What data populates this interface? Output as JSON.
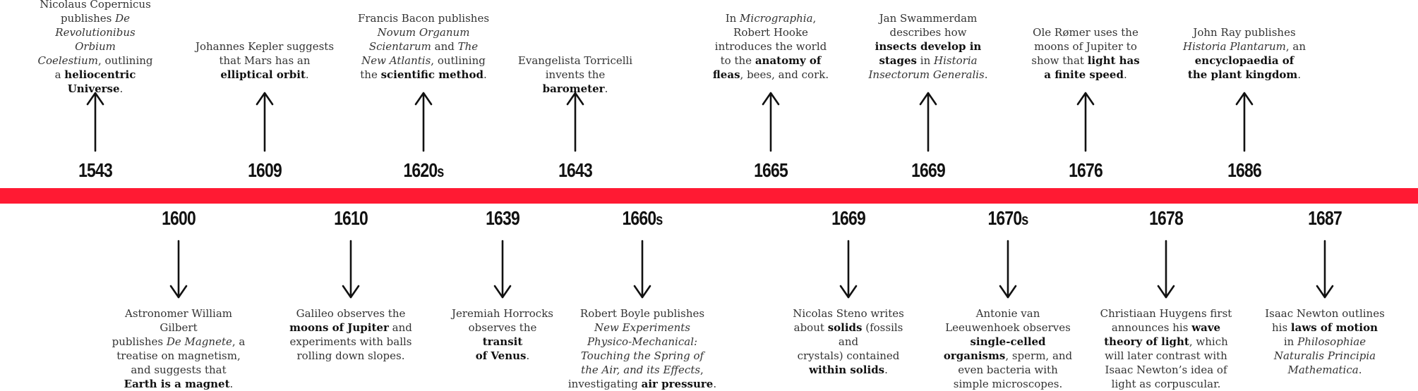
{
  "colors": {
    "band": "#ff1a33",
    "text": "#222222",
    "year": "#111111"
  },
  "events_above": [
    {
      "id": "1543",
      "year": "1543",
      "suffix": "",
      "lines": [
        [
          {
            "t": "Nicolaus Copernicus"
          }
        ],
        [
          {
            "t": "publishes "
          },
          {
            "t": "De",
            "s": "i"
          }
        ],
        [
          {
            "t": "Revolutionibus Orbium",
            "s": "i"
          }
        ],
        [
          {
            "t": "Coelestium",
            "s": "i"
          },
          {
            "t": ", outlining"
          }
        ],
        [
          {
            "t": "a "
          },
          {
            "t": "heliocentric",
            "s": "b"
          }
        ],
        [
          {
            "t": "Universe",
            "s": "b"
          },
          {
            "t": "."
          }
        ]
      ]
    },
    {
      "id": "1609",
      "year": "1609",
      "suffix": "",
      "lines": [
        [
          {
            "t": "Johannes Kepler suggests"
          }
        ],
        [
          {
            "t": "that Mars has an"
          }
        ],
        [
          {
            "t": "elliptical orbit",
            "s": "b"
          },
          {
            "t": "."
          }
        ]
      ]
    },
    {
      "id": "1620s",
      "year": "1620",
      "suffix": "s",
      "lines": [
        [
          {
            "t": "Francis Bacon publishes"
          }
        ],
        [
          {
            "t": "Novum Organum",
            "s": "i"
          }
        ],
        [
          {
            "t": "Scientarum",
            "s": "i"
          },
          {
            "t": " and "
          },
          {
            "t": "The",
            "s": "i"
          }
        ],
        [
          {
            "t": "New Atlantis",
            "s": "i"
          },
          {
            "t": ", outlining"
          }
        ],
        [
          {
            "t": "the "
          },
          {
            "t": "scientific method",
            "s": "b"
          },
          {
            "t": "."
          }
        ]
      ]
    },
    {
      "id": "1643",
      "year": "1643",
      "suffix": "",
      "lines": [
        [
          {
            "t": "Evangelista Torricelli"
          }
        ],
        [
          {
            "t": "invents the "
          },
          {
            "t": "barometer",
            "s": "b"
          },
          {
            "t": "."
          }
        ]
      ]
    },
    {
      "id": "1665",
      "year": "1665",
      "suffix": "",
      "lines": [
        [
          {
            "t": "In "
          },
          {
            "t": "Micrographia",
            "s": "i"
          },
          {
            "t": ","
          }
        ],
        [
          {
            "t": "Robert Hooke"
          }
        ],
        [
          {
            "t": "introduces the world"
          }
        ],
        [
          {
            "t": "to the "
          },
          {
            "t": "anatomy of",
            "s": "b"
          }
        ],
        [
          {
            "t": "fleas",
            "s": "b"
          },
          {
            "t": ", bees, and cork."
          }
        ]
      ]
    },
    {
      "id": "1669a",
      "year": "1669",
      "suffix": "",
      "lines": [
        [
          {
            "t": "Jan Swammerdam"
          }
        ],
        [
          {
            "t": "describes how"
          }
        ],
        [
          {
            "t": "insects develop in",
            "s": "b"
          }
        ],
        [
          {
            "t": "stages",
            "s": "b"
          },
          {
            "t": " in "
          },
          {
            "t": "Historia",
            "s": "i"
          }
        ],
        [
          {
            "t": "Insectorum Generalis",
            "s": "i"
          },
          {
            "t": "."
          }
        ]
      ]
    },
    {
      "id": "1676",
      "year": "1676",
      "suffix": "",
      "lines": [
        [
          {
            "t": "Ole Rømer uses the"
          }
        ],
        [
          {
            "t": "moons of Jupiter to"
          }
        ],
        [
          {
            "t": "show that "
          },
          {
            "t": "light has",
            "s": "b"
          }
        ],
        [
          {
            "t": "a finite speed",
            "s": "b"
          },
          {
            "t": "."
          }
        ]
      ]
    },
    {
      "id": "1686",
      "year": "1686",
      "suffix": "",
      "lines": [
        [
          {
            "t": "John Ray publishes"
          }
        ],
        [
          {
            "t": "Historia Plantarum",
            "s": "i"
          },
          {
            "t": ", an"
          }
        ],
        [
          {
            "t": "encyclopaedia of",
            "s": "b"
          }
        ],
        [
          {
            "t": "the plant kingdom",
            "s": "b"
          },
          {
            "t": "."
          }
        ]
      ]
    }
  ],
  "events_below": [
    {
      "id": "1600",
      "year": "1600",
      "suffix": "",
      "lines": [
        [
          {
            "t": "Astronomer William Gilbert"
          }
        ],
        [
          {
            "t": "publishes "
          },
          {
            "t": "De Magnete",
            "s": "i"
          },
          {
            "t": ", a"
          }
        ],
        [
          {
            "t": "treatise on magnetism,"
          }
        ],
        [
          {
            "t": "and suggests that"
          }
        ],
        [
          {
            "t": "Earth is a magnet",
            "s": "b"
          },
          {
            "t": "."
          }
        ]
      ]
    },
    {
      "id": "1610",
      "year": "1610",
      "suffix": "",
      "lines": [
        [
          {
            "t": "Galileo observes the"
          }
        ],
        [
          {
            "t": "moons of Jupiter",
            "s": "b"
          },
          {
            "t": " and"
          }
        ],
        [
          {
            "t": "experiments with balls"
          }
        ],
        [
          {
            "t": "rolling down slopes."
          }
        ]
      ]
    },
    {
      "id": "1639",
      "year": "1639",
      "suffix": "",
      "lines": [
        [
          {
            "t": "Jeremiah Horrocks"
          }
        ],
        [
          {
            "t": "observes the "
          },
          {
            "t": "transit",
            "s": "b"
          }
        ],
        [
          {
            "t": "of Venus",
            "s": "b"
          },
          {
            "t": "."
          }
        ]
      ]
    },
    {
      "id": "1660s",
      "year": "1660",
      "suffix": "s",
      "lines": [
        [
          {
            "t": "Robert Boyle publishes"
          }
        ],
        [
          {
            "t": "New Experiments",
            "s": "i"
          }
        ],
        [
          {
            "t": "Physico-Mechanical:",
            "s": "i"
          }
        ],
        [
          {
            "t": "Touching the Spring of",
            "s": "i"
          }
        ],
        [
          {
            "t": "the Air, and its Effects",
            "s": "i"
          },
          {
            "t": ","
          }
        ],
        [
          {
            "t": "investigating "
          },
          {
            "t": "air pressure",
            "s": "b"
          },
          {
            "t": "."
          }
        ]
      ]
    },
    {
      "id": "1669b",
      "year": "1669",
      "suffix": "",
      "lines": [
        [
          {
            "t": "Nicolas Steno writes"
          }
        ],
        [
          {
            "t": "about "
          },
          {
            "t": "solids",
            "s": "b"
          },
          {
            "t": " (fossils and"
          }
        ],
        [
          {
            "t": "crystals) contained"
          }
        ],
        [
          {
            "t": "within solids",
            "s": "b"
          },
          {
            "t": "."
          }
        ]
      ]
    },
    {
      "id": "1670s",
      "year": "1670",
      "suffix": "s",
      "lines": [
        [
          {
            "t": "Antonie van"
          }
        ],
        [
          {
            "t": "Leeuwenhoek observes"
          }
        ],
        [
          {
            "t": "single-celled",
            "s": "b"
          }
        ],
        [
          {
            "t": "organisms",
            "s": "b"
          },
          {
            "t": ", sperm, and"
          }
        ],
        [
          {
            "t": "even bacteria with"
          }
        ],
        [
          {
            "t": "simple microscopes."
          }
        ]
      ]
    },
    {
      "id": "1678",
      "year": "1678",
      "suffix": "",
      "lines": [
        [
          {
            "t": "Christiaan Huygens first"
          }
        ],
        [
          {
            "t": "announces his "
          },
          {
            "t": "wave",
            "s": "b"
          }
        ],
        [
          {
            "t": "theory of light",
            "s": "b"
          },
          {
            "t": ", which"
          }
        ],
        [
          {
            "t": "will later contrast with"
          }
        ],
        [
          {
            "t": "Isaac Newton’s idea of"
          }
        ],
        [
          {
            "t": "light as corpuscular."
          }
        ]
      ]
    },
    {
      "id": "1687",
      "year": "1687",
      "suffix": "",
      "lines": [
        [
          {
            "t": "Isaac Newton outlines"
          }
        ],
        [
          {
            "t": "his "
          },
          {
            "t": "laws of motion",
            "s": "b"
          }
        ],
        [
          {
            "t": "in "
          },
          {
            "t": "Philosophiae",
            "s": "i"
          }
        ],
        [
          {
            "t": "Naturalis Principia",
            "s": "i"
          }
        ],
        [
          {
            "t": "Mathematica",
            "s": "i"
          },
          {
            "t": "."
          }
        ]
      ]
    }
  ]
}
